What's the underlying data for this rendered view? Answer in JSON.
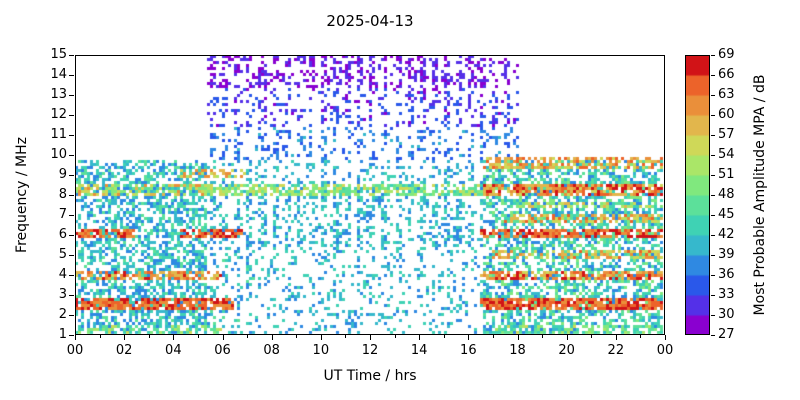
{
  "chart_data": {
    "type": "heatmap",
    "title": "2025-04-13",
    "xlabel": "UT Time / hrs",
    "ylabel": "Frequency / MHz",
    "colorbar_label": "Most Probable Amplitude MPA / dB",
    "xlim": [
      0,
      24
    ],
    "ylim": [
      1,
      15
    ],
    "x_tick_values": [
      0,
      2,
      4,
      6,
      8,
      10,
      12,
      14,
      16,
      18,
      20,
      22,
      24
    ],
    "x_tick_labels": [
      "00",
      "02",
      "04",
      "06",
      "08",
      "10",
      "12",
      "14",
      "16",
      "18",
      "20",
      "22",
      "00"
    ],
    "x_minor_tick_values": [
      1,
      3,
      5,
      7,
      9,
      11,
      13,
      15,
      17,
      19,
      21,
      23
    ],
    "y_tick_values": [
      1,
      2,
      3,
      4,
      5,
      6,
      7,
      8,
      9,
      10,
      11,
      12,
      13,
      14,
      15
    ],
    "colorbar_tick_values": [
      27,
      30,
      33,
      36,
      39,
      42,
      45,
      48,
      51,
      54,
      57,
      60,
      63,
      66,
      69
    ],
    "amp_min": 27,
    "amp_max": 69,
    "amp_step": 3,
    "colorbar_colors": [
      "#8a00d0",
      "#5430e8",
      "#2a58ea",
      "#2f89e2",
      "#36b8cc",
      "#3fd2b4",
      "#5ce09a",
      "#80e87e",
      "#aae668",
      "#cfd858",
      "#e2b64c",
      "#ea8f3a",
      "#ec632a",
      "#d11317"
    ],
    "bands": [
      {
        "f": [
          2.3,
          2.85
        ],
        "t": [
          [
            0,
            6.5
          ],
          [
            16.5,
            24.1
          ]
        ],
        "p": 0.8,
        "amp": [
          60,
          69
        ]
      },
      {
        "f": [
          3.75,
          4.25
        ],
        "t": [
          [
            0,
            6.0
          ],
          [
            16.5,
            24.1
          ]
        ],
        "p": 0.65,
        "amp": [
          56,
          68
        ]
      },
      {
        "f": [
          4.85,
          5.2
        ],
        "t": [
          [
            17,
            24.1
          ]
        ],
        "p": 0.5,
        "amp": [
          53,
          64
        ]
      },
      {
        "f": [
          5.85,
          6.35
        ],
        "t": [
          [
            0,
            2.5
          ],
          [
            4.3,
            6.8
          ],
          [
            16.5,
            24.1
          ]
        ],
        "p": 0.7,
        "amp": [
          60,
          69
        ]
      },
      {
        "f": [
          6.6,
          7.1
        ],
        "t": [
          [
            17.5,
            24.1
          ]
        ],
        "p": 0.5,
        "amp": [
          53,
          66
        ]
      },
      {
        "f": [
          7.35,
          7.7
        ],
        "t": [
          [
            18,
            24.1
          ]
        ],
        "p": 0.45,
        "amp": [
          48,
          60
        ]
      },
      {
        "f": [
          7.9,
          8.5
        ],
        "t": [
          [
            0,
            5.4
          ]
        ],
        "p": 0.6,
        "amp": [
          47,
          62
        ]
      },
      {
        "f": [
          7.9,
          8.5
        ],
        "t": [
          [
            5.4,
            16.6
          ]
        ],
        "p": 0.65,
        "amp": [
          44,
          56
        ]
      },
      {
        "f": [
          7.9,
          8.5
        ],
        "t": [
          [
            16.6,
            24.1
          ]
        ],
        "p": 0.75,
        "amp": [
          56,
          69
        ]
      },
      {
        "f": [
          9.35,
          9.85
        ],
        "t": [
          [
            16.6,
            24.1
          ]
        ],
        "p": 0.6,
        "amp": [
          53,
          66
        ]
      },
      {
        "f": [
          8.9,
          9.3
        ],
        "t": [
          [
            4.3,
            7.0
          ]
        ],
        "p": 0.4,
        "amp": [
          53,
          63
        ]
      },
      {
        "f": [
          1.0,
          1.45
        ],
        "t": [
          [
            0,
            6
          ],
          [
            17,
            24.1
          ]
        ],
        "p": 0.4,
        "amp": [
          42,
          55
        ]
      }
    ],
    "regions": [
      {
        "f": [
          9.8,
          15.3
        ],
        "t": [
          [
            0,
            5.4
          ],
          [
            18.05,
            24.1
          ]
        ],
        "p": 0,
        "amp": [
          36,
          42
        ]
      },
      {
        "f": [
          13.4,
          15.3
        ],
        "t": [
          [
            5.4,
            17.6
          ]
        ],
        "p": 0.5,
        "amp": [
          27,
          33
        ],
        "stripe": true
      },
      {
        "f": [
          13.4,
          15.3
        ],
        "t": [
          [
            17.6,
            18.05
          ]
        ],
        "p": 0.25,
        "amp": [
          27,
          33
        ],
        "stripe": true
      },
      {
        "f": [
          11.4,
          13.4
        ],
        "t": [
          [
            5.4,
            18.05
          ]
        ],
        "p": 0.33,
        "amp": [
          29,
          36
        ],
        "stripe": true
      },
      {
        "f": [
          9.8,
          11.4
        ],
        "t": [
          [
            5.4,
            18.05
          ]
        ],
        "p": 0.3,
        "amp": [
          33,
          40
        ],
        "stripe": true
      },
      {
        "f": [
          1,
          9.8
        ],
        "t": [
          [
            0,
            5.4
          ]
        ],
        "p": 0.52,
        "amp": [
          36,
          47
        ]
      },
      {
        "f": [
          1,
          9.8
        ],
        "t": [
          [
            16.6,
            24.1
          ]
        ],
        "p": 0.55,
        "amp": [
          36,
          50
        ]
      },
      {
        "f": [
          5.2,
          8.7
        ],
        "t": [
          [
            5.4,
            16.6
          ]
        ],
        "p": 0.45,
        "amp": [
          36,
          45
        ],
        "stripe": true
      },
      {
        "f": [
          8.7,
          9.8
        ],
        "t": [
          [
            5.4,
            16.6
          ]
        ],
        "p": 0.28,
        "amp": [
          36,
          44
        ],
        "stripe": true
      },
      {
        "f": [
          1,
          5.2
        ],
        "t": [
          [
            5.4,
            7.5
          ]
        ],
        "p": 0.38,
        "amp": [
          36,
          46
        ],
        "stripe": true
      },
      {
        "f": [
          1,
          5.2
        ],
        "t": [
          [
            7.5,
            16.6
          ]
        ],
        "p": 0.17,
        "amp": [
          36,
          45
        ]
      }
    ],
    "render": {
      "seed": 7,
      "cell": 3,
      "stripe_period_hours": 0.25,
      "stripe_low": 0.35
    }
  }
}
